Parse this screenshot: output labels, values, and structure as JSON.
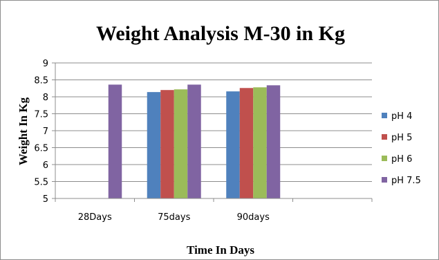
{
  "chart_data": {
    "type": "bar",
    "title": "Weight Analysis M-30 in Kg",
    "xlabel": "Time In Days",
    "ylabel": "Weight In Kg",
    "categories": [
      "28Days",
      "75days",
      "90days",
      ""
    ],
    "ylim": [
      5,
      9
    ],
    "yticks": [
      "5",
      "5.5",
      "6",
      "6.5",
      "7",
      "7.5",
      "8",
      "8.5",
      "9"
    ],
    "grid": true,
    "legend_position": "right",
    "series": [
      {
        "name": "pH 4",
        "color": "#4f81bd",
        "values": [
          null,
          8.14,
          8.16,
          null
        ]
      },
      {
        "name": "pH 5",
        "color": "#c0504d",
        "values": [
          null,
          8.2,
          8.26,
          null
        ]
      },
      {
        "name": "pH 6",
        "color": "#9bbb59",
        "values": [
          null,
          8.22,
          8.28,
          null
        ]
      },
      {
        "name": "pH 7.5",
        "color": "#8064a2",
        "values": [
          8.36,
          8.36,
          8.34,
          null
        ]
      }
    ]
  }
}
